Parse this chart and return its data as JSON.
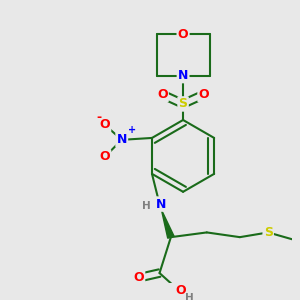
{
  "bg_color": "#e8e8e8",
  "atom_colors": {
    "O": "#ff0000",
    "N": "#0000ff",
    "S": "#cccc00",
    "C": "#1a6b1a",
    "H": "#808080"
  },
  "bond_color": "#1a6b1a",
  "figsize": [
    3.0,
    3.0
  ],
  "dpi": 100
}
